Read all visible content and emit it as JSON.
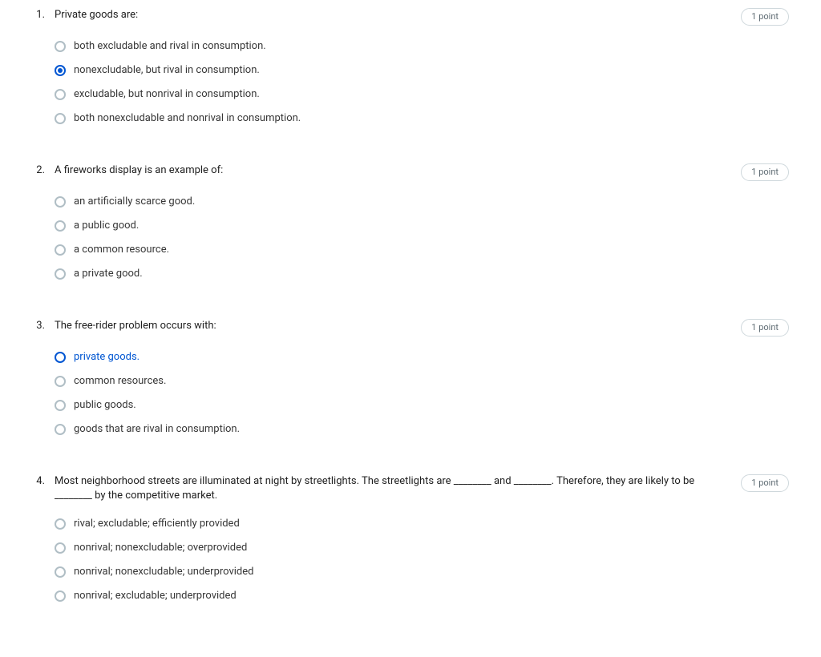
{
  "points_label": "1 point",
  "colors": {
    "accent": "#0056d2",
    "radio_border": "#b0bec5",
    "text": "#1f1f1f",
    "option_text": "#373737",
    "badge_border": "#cfd8dc",
    "badge_text": "#5e6b73",
    "background": "#ffffff"
  },
  "questions": [
    {
      "number": "1.",
      "prompt": "Private goods are:",
      "options": [
        {
          "label": "both excludable and rival in consumption.",
          "state": "unselected"
        },
        {
          "label": "nonexcludable, but rival in consumption.",
          "state": "selected"
        },
        {
          "label": "excludable, but nonrival in consumption.",
          "state": "unselected"
        },
        {
          "label": "both nonexcludable and nonrival in consumption.",
          "state": "unselected"
        }
      ]
    },
    {
      "number": "2.",
      "prompt": "A fireworks display is an example of:",
      "options": [
        {
          "label": "an artificially scarce good.",
          "state": "unselected"
        },
        {
          "label": "a public good.",
          "state": "unselected"
        },
        {
          "label": "a common resource.",
          "state": "unselected"
        },
        {
          "label": "a private good.",
          "state": "unselected"
        }
      ]
    },
    {
      "number": "3.",
      "prompt": "The free-rider problem occurs with:",
      "options": [
        {
          "label": "private goods.",
          "state": "focused"
        },
        {
          "label": "common resources.",
          "state": "unselected"
        },
        {
          "label": "public goods.",
          "state": "unselected"
        },
        {
          "label": "goods that are rival in consumption.",
          "state": "unselected"
        }
      ]
    },
    {
      "number": "4.",
      "prompt": "Most neighborhood streets are illuminated at night by streetlights. The streetlights are ________ and ________. Therefore, they are likely to be ________ by the competitive market.",
      "options": [
        {
          "label": "rival; excludable; efficiently provided",
          "state": "unselected"
        },
        {
          "label": "nonrival; nonexcludable; overprovided",
          "state": "unselected"
        },
        {
          "label": "nonrival; nonexcludable; underprovided",
          "state": "unselected"
        },
        {
          "label": "nonrival; excludable; underprovided",
          "state": "unselected"
        }
      ]
    }
  ]
}
